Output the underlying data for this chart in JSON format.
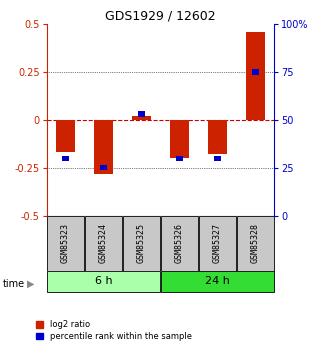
{
  "title": "GDS1929 / 12602",
  "samples": [
    "GSM85323",
    "GSM85324",
    "GSM85325",
    "GSM85326",
    "GSM85327",
    "GSM85328"
  ],
  "log2_ratios": [
    -0.17,
    -0.28,
    0.02,
    -0.2,
    -0.18,
    0.46
  ],
  "percentile_ranks": [
    30,
    25,
    53,
    30,
    30,
    75
  ],
  "groups": [
    {
      "label": "6 h",
      "indices": [
        0,
        1,
        2
      ],
      "color": "#AAFFAA"
    },
    {
      "label": "24 h",
      "indices": [
        3,
        4,
        5
      ],
      "color": "#33DD33"
    }
  ],
  "ylim_left": [
    -0.5,
    0.5
  ],
  "ylim_right": [
    0,
    100
  ],
  "yticks_left": [
    -0.5,
    -0.25,
    0,
    0.25,
    0.5
  ],
  "yticks_right": [
    0,
    25,
    50,
    75,
    100
  ],
  "bar_color_log2": "#CC2200",
  "bar_color_pct": "#0000CC",
  "bg_color": "#FFFFFF",
  "zero_line_color": "#CC0000",
  "title_color": "#000000",
  "left_axis_color": "#CC2200",
  "right_axis_color": "#0000CC",
  "bar_width": 0.5,
  "pct_bar_width": 0.2,
  "sample_box_color": "#C8C8C8",
  "legend_log2": "log2 ratio",
  "legend_pct": "percentile rank within the sample",
  "time_label": "time"
}
